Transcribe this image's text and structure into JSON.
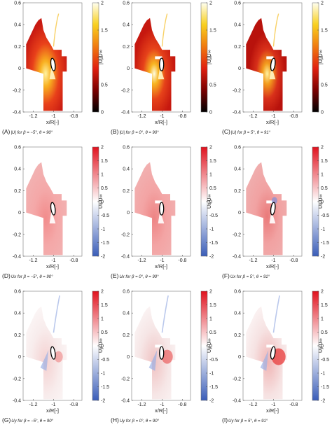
{
  "figure": {
    "colorbar_ticks": [
      "2",
      "1.5",
      "1",
      "0.5",
      "0",
      "-0.5",
      "-1",
      "-1.5",
      "-2"
    ],
    "colorbar_units": [
      "|U|/U∞",
      "Ux/U∞",
      "Uy/U∞"
    ],
    "colormaps": {
      "magnitude": [
        "#000000",
        "#7a0000",
        "#e02010",
        "#f07a10",
        "#f8d020",
        "#fffff0"
      ],
      "diverging": [
        "#3a5db8",
        "#ffffff",
        "#e0121e"
      ]
    }
  },
  "chart_data": [
    {
      "type": "heatmap",
      "panel": "A",
      "quantity": "|U|",
      "beta": -5,
      "theta": 90,
      "caption_prefix": "(A)",
      "caption_text": "|U| for β = −5°, θ = 90°",
      "xlabel": "x/R[-]",
      "xticks": [
        "-1.2",
        "-1",
        "-0.8"
      ],
      "yticks": [
        "0.6",
        "0.4",
        "0.2",
        "0",
        "-0.2",
        "-0.4"
      ],
      "xlim": [
        -1.3,
        -0.72
      ],
      "ylim": [
        -0.4,
        0.6
      ],
      "clim": [
        0,
        2
      ],
      "cticks": [
        "2",
        "1.5",
        "1",
        "0.5",
        "0"
      ]
    },
    {
      "type": "heatmap",
      "panel": "B",
      "quantity": "|U|",
      "beta": 0,
      "theta": 90,
      "caption_prefix": "(B)",
      "caption_text": "|U| for β = 0°, θ = 90°",
      "xlabel": "x/R[-]",
      "xticks": [
        "-1.2",
        "-1",
        "-0.8"
      ],
      "yticks": [
        "0.6",
        "0.4",
        "0.2",
        "0",
        "-0.2",
        "-0.4"
      ],
      "xlim": [
        -1.3,
        -0.72
      ],
      "ylim": [
        -0.4,
        0.6
      ],
      "clim": [
        0,
        2
      ],
      "cticks": [
        "2",
        "1.5",
        "1",
        "0.5",
        "0"
      ]
    },
    {
      "type": "heatmap",
      "panel": "C",
      "quantity": "|U|",
      "beta": 5,
      "theta": 91,
      "caption_prefix": "(C)",
      "caption_text": "|U| for β = 5°, θ = 91°",
      "xlabel": "x/R[-]",
      "xticks": [
        "-1.2",
        "-1",
        "-0.8"
      ],
      "yticks": [
        "0.6",
        "0.4",
        "0.2",
        "0",
        "-0.2",
        "-0.4"
      ],
      "xlim": [
        -1.3,
        -0.72
      ],
      "ylim": [
        -0.4,
        0.6
      ],
      "clim": [
        0,
        2
      ],
      "cticks": [
        "2",
        "1.5",
        "1",
        "0.5",
        "0"
      ]
    },
    {
      "type": "heatmap",
      "panel": "D",
      "quantity": "Ux",
      "beta": -5,
      "theta": 90,
      "caption_prefix": "(D)",
      "caption_text": "Ux for β = −5°, θ = 90°",
      "xlabel": "x/R[-]",
      "xticks": [
        "-1.2",
        "-1",
        "-0.8"
      ],
      "yticks": [
        "0.6",
        "0.4",
        "0.2",
        "0",
        "-0.2",
        "-0.4"
      ],
      "xlim": [
        -1.3,
        -0.72
      ],
      "ylim": [
        -0.4,
        0.6
      ],
      "clim": [
        -2,
        2
      ],
      "cticks": [
        "2",
        "1.5",
        "1",
        "0.5",
        "0",
        "-0.5",
        "-1",
        "-1.5",
        "-2"
      ]
    },
    {
      "type": "heatmap",
      "panel": "E",
      "quantity": "Ux",
      "beta": 0,
      "theta": 90,
      "caption_prefix": "(E)",
      "caption_text": "Ux for β = 0°, θ = 90°",
      "xlabel": "x/R[-]",
      "xticks": [
        "-1.2",
        "-1",
        "-0.8"
      ],
      "yticks": [
        "0.6",
        "0.4",
        "0.2",
        "0",
        "-0.2",
        "-0.4"
      ],
      "xlim": [
        -1.3,
        -0.72
      ],
      "ylim": [
        -0.4,
        0.6
      ],
      "clim": [
        -2,
        2
      ],
      "cticks": [
        "2",
        "1.5",
        "1",
        "0.5",
        "0",
        "-0.5",
        "-1",
        "-1.5",
        "-2"
      ]
    },
    {
      "type": "heatmap",
      "panel": "F",
      "quantity": "Ux",
      "beta": 5,
      "theta": 91,
      "caption_prefix": "(F)",
      "caption_text": "Ux for β = 5°, θ = 91°",
      "xlabel": "x/R[-]",
      "xticks": [
        "-1.2",
        "-1",
        "-0.8"
      ],
      "yticks": [
        "0.6",
        "0.4",
        "0.2",
        "0",
        "-0.2",
        "-0.4"
      ],
      "xlim": [
        -1.3,
        -0.72
      ],
      "ylim": [
        -0.4,
        0.6
      ],
      "clim": [
        -2,
        2
      ],
      "cticks": [
        "2",
        "1.5",
        "1",
        "0.5",
        "0",
        "-0.5",
        "-1",
        "-1.5",
        "-2"
      ]
    },
    {
      "type": "heatmap",
      "panel": "G",
      "quantity": "Uy",
      "beta": -5,
      "theta": 90,
      "caption_prefix": "(G)",
      "caption_text": "Uy for β = −5°, θ = 90°",
      "xlabel": "x/R[-]",
      "xticks": [
        "-1.2",
        "-1",
        "-0.8"
      ],
      "yticks": [
        "0.6",
        "0.4",
        "0.2",
        "0",
        "-0.2",
        "-0.4"
      ],
      "xlim": [
        -1.3,
        -0.72
      ],
      "ylim": [
        -0.4,
        0.6
      ],
      "clim": [
        -2,
        2
      ],
      "cticks": [
        "2",
        "1.5",
        "1",
        "0.5",
        "0",
        "-0.5",
        "-1",
        "-1.5",
        "-2"
      ]
    },
    {
      "type": "heatmap",
      "panel": "H",
      "quantity": "Uy",
      "beta": 0,
      "theta": 90,
      "caption_prefix": "(H)",
      "caption_text": "Uy for β = 0°, θ = 90°",
      "xlabel": "x/R[-]",
      "xticks": [
        "-1.2",
        "-1",
        "-0.8"
      ],
      "yticks": [
        "0.6",
        "0.4",
        "0.2",
        "0",
        "-0.2",
        "-0.4"
      ],
      "xlim": [
        -1.3,
        -0.72
      ],
      "ylim": [
        -0.4,
        0.6
      ],
      "clim": [
        -2,
        2
      ],
      "cticks": [
        "2",
        "1.5",
        "1",
        "0.5",
        "0",
        "-0.5",
        "-1",
        "-1.5",
        "-2"
      ]
    },
    {
      "type": "heatmap",
      "panel": "I",
      "quantity": "Uy",
      "beta": 5,
      "theta": 91,
      "caption_prefix": "(I)",
      "caption_text": "Uy for β = 5°, θ = 91°",
      "xlabel": "x/R[-]",
      "xticks": [
        "-1.2",
        "-1",
        "-0.8"
      ],
      "yticks": [
        "0.6",
        "0.4",
        "0.2",
        "0",
        "-0.2",
        "-0.4"
      ],
      "xlim": [
        -1.3,
        -0.72
      ],
      "ylim": [
        -0.4,
        0.6
      ],
      "clim": [
        -2,
        2
      ],
      "cticks": [
        "2",
        "1.5",
        "1",
        "0.5",
        "0",
        "-0.5",
        "-1",
        "-1.5",
        "-2"
      ]
    }
  ]
}
